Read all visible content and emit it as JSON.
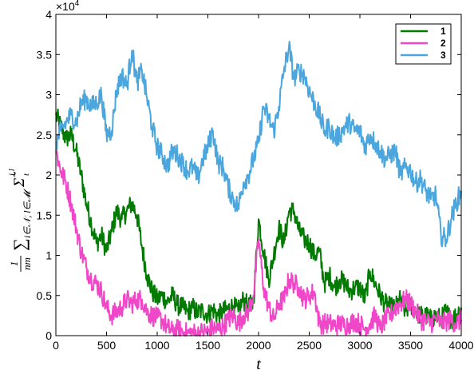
{
  "chart_data": {
    "type": "line",
    "xlabel": "t",
    "ylabel": "1/(nm) Σ_{i∈N,l∈M} Σ̃_t^{i,l}",
    "ylabel_parts": {
      "frac_num": "1",
      "frac_den": "nm",
      "sum": "∑",
      "sub": "i∈𝒩, l∈𝓜",
      "sigma": "Σ̃",
      "sup": "i,l",
      "sigma_sub": "t"
    },
    "y_exponent": "×10",
    "y_exponent_power": "4",
    "xlim": [
      0,
      4000
    ],
    "ylim": [
      0,
      40000
    ],
    "x_ticks": [
      0,
      500,
      1000,
      1500,
      2000,
      2500,
      3000,
      3500,
      4000
    ],
    "x_tick_labels": [
      "0",
      "500",
      "1000",
      "1500",
      "2000",
      "2500",
      "3000",
      "3500",
      "4000"
    ],
    "y_ticks": [
      0,
      5000,
      10000,
      15000,
      20000,
      25000,
      30000,
      35000,
      40000
    ],
    "y_tick_labels": [
      "0",
      "0.5",
      "1",
      "1.5",
      "2",
      "2.5",
      "3",
      "3.5",
      "4"
    ],
    "grid": false,
    "legend_position": "top-right",
    "series": [
      {
        "name": "1",
        "color": "#007a00",
        "x": [
          0,
          50,
          100,
          150,
          200,
          250,
          300,
          350,
          400,
          450,
          500,
          550,
          600,
          650,
          700,
          750,
          800,
          850,
          900,
          950,
          1000,
          1050,
          1100,
          1150,
          1200,
          1250,
          1300,
          1350,
          1400,
          1450,
          1500,
          1550,
          1600,
          1650,
          1700,
          1750,
          1800,
          1850,
          1900,
          1950,
          2000,
          2050,
          2100,
          2150,
          2200,
          2250,
          2300,
          2350,
          2400,
          2450,
          2500,
          2550,
          2600,
          2650,
          2700,
          2750,
          2800,
          2850,
          2900,
          2950,
          3000,
          3050,
          3100,
          3150,
          3200,
          3250,
          3300,
          3350,
          3400,
          3450,
          3500,
          3550,
          3600,
          3650,
          3700,
          3750,
          3800,
          3850,
          3900,
          3950,
          4000
        ],
        "y": [
          27500,
          26000,
          24500,
          25000,
          23000,
          20000,
          16500,
          14000,
          11500,
          12500,
          10500,
          13000,
          15500,
          14500,
          15500,
          16500,
          15000,
          11000,
          7500,
          5500,
          4500,
          5000,
          4200,
          5000,
          3800,
          3500,
          3000,
          3500,
          2800,
          3200,
          2600,
          3300,
          2500,
          3000,
          3300,
          3700,
          3000,
          4500,
          3500,
          4200,
          14500,
          10500,
          7000,
          10000,
          13500,
          11500,
          15500,
          15500,
          13000,
          12000,
          11500,
          10000,
          10500,
          6500,
          7500,
          6000,
          7000,
          6500,
          5500,
          6000,
          6000,
          4500,
          8000,
          6500,
          5000,
          4000,
          3500,
          3500,
          4500,
          3000,
          4000,
          3000,
          2500,
          2500,
          2000,
          2500,
          2000,
          3000,
          2000,
          2500,
          3500
        ]
      },
      {
        "name": "2",
        "color": "#f046c8",
        "x": [
          0,
          50,
          100,
          150,
          200,
          250,
          300,
          350,
          400,
          450,
          500,
          550,
          600,
          650,
          700,
          750,
          800,
          850,
          900,
          950,
          1000,
          1050,
          1100,
          1150,
          1200,
          1250,
          1300,
          1350,
          1400,
          1450,
          1500,
          1550,
          1600,
          1650,
          1700,
          1750,
          1800,
          1850,
          1900,
          1950,
          2000,
          2050,
          2100,
          2150,
          2200,
          2250,
          2300,
          2350,
          2400,
          2450,
          2500,
          2550,
          2600,
          2650,
          2700,
          2750,
          2800,
          2850,
          2900,
          2950,
          3000,
          3050,
          3100,
          3150,
          3200,
          3250,
          3300,
          3350,
          3400,
          3450,
          3500,
          3550,
          3600,
          3650,
          3700,
          3750,
          3800,
          3850,
          3900,
          3950,
          4000
        ],
        "y": [
          23000,
          20500,
          19000,
          16500,
          13500,
          10500,
          8500,
          7000,
          6500,
          5500,
          3500,
          2500,
          3000,
          3500,
          4500,
          4000,
          4500,
          4500,
          3000,
          2500,
          2200,
          2000,
          1000,
          500,
          800,
          500,
          300,
          400,
          200,
          500,
          500,
          1000,
          700,
          1200,
          2000,
          2500,
          1500,
          2500,
          3000,
          5000,
          12000,
          6000,
          3500,
          2000,
          4000,
          4500,
          7000,
          6500,
          6000,
          4500,
          5000,
          5500,
          1500,
          1500,
          1500,
          1200,
          1500,
          1300,
          1500,
          1800,
          1500,
          800,
          1500,
          2500,
          800,
          2000,
          2500,
          3500,
          4000,
          4500,
          4000,
          3000,
          2000,
          1800,
          1500,
          2200,
          1500,
          1800,
          2000,
          1500,
          2000
        ]
      },
      {
        "name": "3",
        "color": "#4aa6dd",
        "x": [
          0,
          50,
          100,
          150,
          200,
          250,
          300,
          350,
          400,
          450,
          500,
          550,
          600,
          650,
          700,
          750,
          800,
          850,
          900,
          950,
          1000,
          1050,
          1100,
          1150,
          1200,
          1250,
          1300,
          1350,
          1400,
          1450,
          1500,
          1550,
          1600,
          1650,
          1700,
          1750,
          1800,
          1850,
          1900,
          1950,
          2000,
          2050,
          2100,
          2150,
          2200,
          2250,
          2300,
          2350,
          2400,
          2450,
          2500,
          2550,
          2600,
          2650,
          2700,
          2750,
          2800,
          2850,
          2900,
          2950,
          3000,
          3050,
          3100,
          3150,
          3200,
          3250,
          3300,
          3350,
          3400,
          3450,
          3500,
          3550,
          3600,
          3650,
          3700,
          3750,
          3800,
          3850,
          3900,
          3950,
          4000
        ],
        "y": [
          24000,
          25500,
          26500,
          27500,
          26500,
          29000,
          29500,
          28500,
          29000,
          30000,
          25000,
          25500,
          30500,
          32500,
          31000,
          35500,
          31500,
          33000,
          29500,
          26000,
          23500,
          22500,
          21000,
          23000,
          22500,
          21500,
          20500,
          21000,
          19500,
          22000,
          23500,
          25500,
          21500,
          21000,
          18500,
          17000,
          16000,
          19000,
          20000,
          22000,
          24000,
          28500,
          27000,
          25500,
          28500,
          33000,
          36000,
          32000,
          33000,
          32500,
          30500,
          29000,
          27500,
          25500,
          26000,
          24500,
          25000,
          26000,
          26500,
          25500,
          25500,
          23500,
          25000,
          24000,
          23000,
          22000,
          22500,
          23000,
          20000,
          21000,
          20500,
          19000,
          19500,
          18000,
          17000,
          17500,
          12500,
          12000,
          14500,
          16500,
          18000
        ]
      }
    ]
  }
}
